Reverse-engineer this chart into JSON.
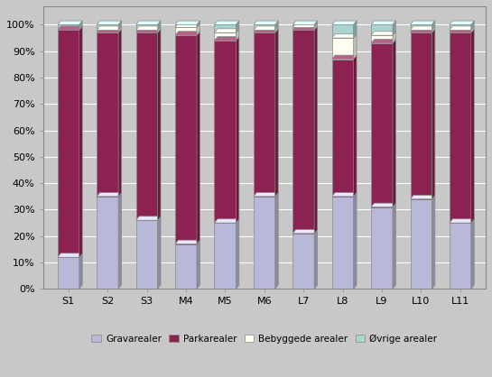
{
  "categories": [
    "S1",
    "S2",
    "S3",
    "M4",
    "M5",
    "M6",
    "L7",
    "L8",
    "L9",
    "L10",
    "L11"
  ],
  "gravarealer": [
    12,
    35,
    26,
    17,
    25,
    35,
    21,
    35,
    31,
    34,
    25
  ],
  "parkarealer": [
    86,
    62,
    71,
    79,
    69,
    62,
    77,
    52,
    62,
    63,
    72
  ],
  "bebyggede_arealer": [
    0,
    1,
    1,
    3,
    3,
    1,
    1,
    8,
    3,
    1,
    1
  ],
  "ovrige_arealer": [
    2,
    2,
    2,
    1,
    3,
    2,
    1,
    5,
    4,
    2,
    2
  ],
  "colors": {
    "gravarealer": "#b8b8d8",
    "parkarealer": "#8b2252",
    "bebyggede_arealer": "#fffff0",
    "ovrige_arealer": "#aad4d4"
  },
  "legend_labels": [
    "Gravarealer",
    "Parkarealer",
    "Bebyggede arealer",
    "Øvrige arealer"
  ],
  "ylabel_ticks": [
    "0%",
    "10%",
    "20%",
    "30%",
    "40%",
    "50%",
    "60%",
    "70%",
    "80%",
    "90%",
    "100%"
  ],
  "fig_facecolor": "#c8c8c8",
  "plot_facecolor": "#c8c8c8",
  "bar_edge_color": "#888888",
  "bar_width": 0.55,
  "figsize": [
    5.45,
    4.18
  ],
  "dpi": 100
}
